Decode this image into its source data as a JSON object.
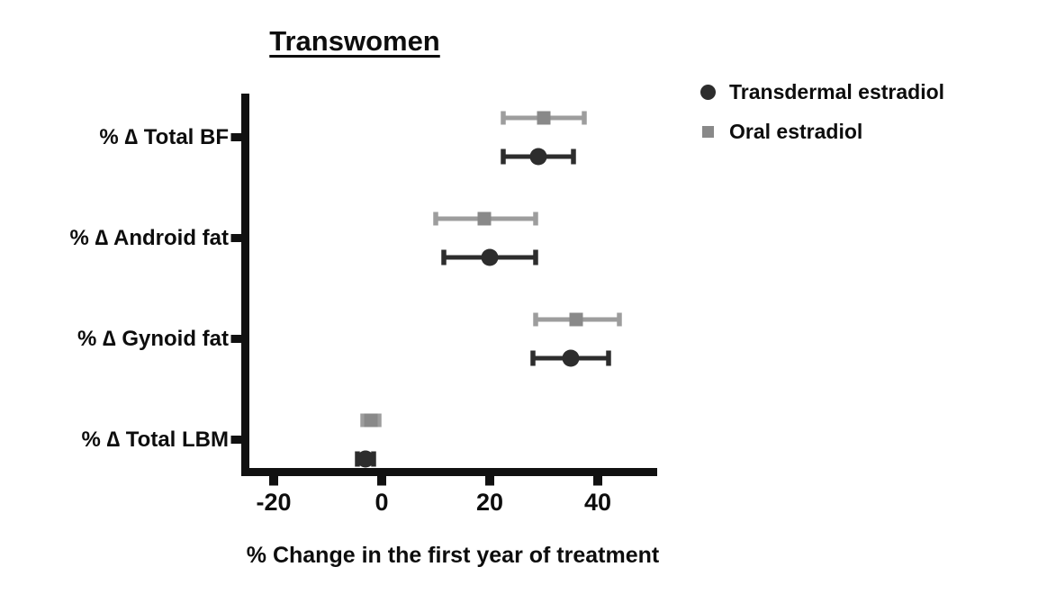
{
  "chart_data": {
    "type": "scatter",
    "subtype": "horizontal-dot-plot-with-error-bars",
    "title": "Transwomen",
    "xlabel": "% Change in the first year of treatment",
    "ylabel": "",
    "categories": [
      "% ∆ Total BF",
      "% ∆ Android fat",
      "% ∆ Gynoid fat",
      "% ∆ Total LBM"
    ],
    "x_ticks": [
      "-20",
      "0",
      "20",
      "40"
    ],
    "x_tick_values": [
      -20,
      0,
      20,
      40
    ],
    "xlim": [
      -26,
      51
    ],
    "grid": false,
    "legend_position": "top-right",
    "axis_color": "#111111",
    "series": [
      {
        "name": "Transdermal estradiol",
        "marker": "circle",
        "marker_color": "#2d2d2d",
        "line_color": "#2d2d2d",
        "values": [
          29,
          20,
          35,
          -3
        ],
        "ci_low": [
          22.5,
          11.5,
          28,
          -4.5
        ],
        "ci_high": [
          35.5,
          28.5,
          42,
          -1.5
        ]
      },
      {
        "name": "Oral estradiol",
        "marker": "square",
        "marker_color": "#898989",
        "line_color": "#9d9d9d",
        "values": [
          30,
          19,
          36,
          -2
        ],
        "ci_low": [
          22.5,
          10,
          28.5,
          -3.5
        ],
        "ci_high": [
          37.5,
          28.5,
          44,
          -0.5
        ]
      }
    ]
  }
}
